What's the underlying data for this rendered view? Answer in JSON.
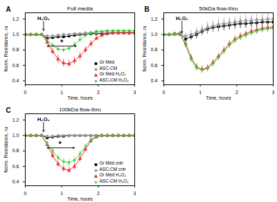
{
  "chart_data": [
    {
      "type": "line",
      "panel": "A",
      "title": "Full media",
      "x_label": "Time, hours",
      "y_label": "Norm. Resistance, ru",
      "xlim": [
        0,
        3
      ],
      "ylim": [
        0.35,
        1.28
      ],
      "xticks": [
        0,
        1,
        2,
        3
      ],
      "yticks": [
        0.4,
        0.6,
        0.8,
        {
          "value": 1,
          "label": "1.0"
        },
        1.2
      ],
      "legend": "lower right",
      "x": [
        0,
        0.15,
        0.3,
        0.45,
        0.6,
        0.75,
        0.9,
        1.05,
        1.2,
        1.35,
        1.5,
        1.65,
        1.8,
        1.95,
        2.1,
        2.25,
        2.4,
        2.55,
        2.7,
        2.85,
        3.0
      ],
      "series": [
        {
          "name": "Gr Med",
          "color": "#000000",
          "marker": "square",
          "values": [
            1,
            1,
            1,
            1,
            0.95,
            0.96,
            0.97,
            0.97,
            0.98,
            0.99,
            1,
            1,
            1.01,
            1.01,
            1.01,
            1.01,
            1.02,
            1.02,
            1.02,
            1.02,
            1.02
          ],
          "errors": [
            0.01,
            0.01,
            0.01,
            0.01,
            0.02,
            0.02,
            0.02,
            0.02,
            0.02,
            0.02,
            0.02,
            0.02,
            0.02,
            0.02,
            0.02,
            0.02,
            0.02,
            0.02,
            0.02,
            0.02,
            0.02
          ]
        },
        {
          "name": "ASC-CM",
          "color": "#9a9a9a",
          "marker": "circle",
          "values": [
            1,
            1,
            1,
            1,
            0.98,
            0.98,
            0.99,
            1,
            1,
            1.01,
            1.01,
            1.02,
            1.02,
            1.02,
            1.03,
            1.03,
            1.03,
            1.03,
            1.03,
            1.03,
            1.03
          ],
          "errors": [
            0.01,
            0.01,
            0.01,
            0.01,
            0.02,
            0.02,
            0.02,
            0.02,
            0.02,
            0.02,
            0.02,
            0.02,
            0.02,
            0.02,
            0.02,
            0.02,
            0.02,
            0.02,
            0.02,
            0.02,
            0.02
          ]
        },
        {
          "name": "Gr Med H₂O₂",
          "color": "#e8312a",
          "marker": "triangle",
          "values": [
            1,
            1,
            1,
            1,
            0.9,
            0.78,
            0.68,
            0.63,
            0.62,
            0.66,
            0.72,
            0.8,
            0.88,
            0.95,
            0.99,
            1.01,
            1.02,
            1.02,
            1.02,
            1.02,
            1.02
          ],
          "errors": [
            0.01,
            0.01,
            0.01,
            0.01,
            0.03,
            0.04,
            0.05,
            0.05,
            0.05,
            0.05,
            0.05,
            0.04,
            0.04,
            0.03,
            0.03,
            0.02,
            0.02,
            0.02,
            0.02,
            0.02,
            0.02
          ]
        },
        {
          "name": "ASC-CM H₂O₂",
          "color": "#3cc83c",
          "marker": "triangle-down",
          "values": [
            1,
            1,
            1,
            1,
            0.93,
            0.86,
            0.81,
            0.8,
            0.82,
            0.87,
            0.93,
            0.99,
            1.02,
            1.04,
            1.04,
            1.05,
            1.05,
            1.05,
            1.05,
            1.05,
            1.05
          ],
          "errors": [
            0.01,
            0.01,
            0.01,
            0.01,
            0.02,
            0.03,
            0.03,
            0.03,
            0.03,
            0.03,
            0.03,
            0.03,
            0.03,
            0.02,
            0.02,
            0.02,
            0.02,
            0.02,
            0.02,
            0.02,
            0.02
          ]
        }
      ],
      "annotations": [
        {
          "text": "H₂O₂",
          "x": 0.5,
          "y": 1.21,
          "arrows": [
            [
              [
                0.5,
                1.17
              ],
              [
                0.5,
                1.05
              ]
            ]
          ]
        },
        {
          "text": "*",
          "x": 1.0,
          "y": 0.9,
          "arrows": [
            [
              [
                1.0,
                0.85
              ],
              [
                0.6,
                0.85
              ]
            ],
            [
              [
                1.0,
                0.85
              ],
              [
                1.4,
                0.85
              ]
            ]
          ]
        }
      ]
    },
    {
      "type": "line",
      "panel": "B",
      "title": "50kDa flow-thru",
      "x_label": "Time, hours",
      "y_label": "Norm. Resistance, ru",
      "xlim": [
        0,
        3
      ],
      "ylim": [
        0.35,
        1.28
      ],
      "xticks": [
        0,
        1,
        2,
        3
      ],
      "yticks": [
        0.4,
        0.6,
        0.8,
        {
          "value": 1,
          "label": "1.0"
        },
        1.2
      ],
      "x": [
        0,
        0.15,
        0.3,
        0.45,
        0.6,
        0.75,
        0.9,
        1.05,
        1.2,
        1.35,
        1.5,
        1.65,
        1.8,
        1.95,
        2.1,
        2.25,
        2.4,
        2.55,
        2.7,
        2.85,
        3.0
      ],
      "series": [
        {
          "color": "#000000",
          "marker": "square",
          "values": [
            1,
            1,
            1.01,
            1.01,
            0.94,
            0.97,
            1.0,
            1.04,
            1.07,
            1.09,
            1.1,
            1.11,
            1.12,
            1.13,
            1.14,
            1.14,
            1.15,
            1.15,
            1.16,
            1.16,
            1.16
          ],
          "errors": [
            0.01,
            0.02,
            0.02,
            0.02,
            0.03,
            0.04,
            0.05,
            0.05,
            0.06,
            0.06,
            0.06,
            0.06,
            0.06,
            0.06,
            0.06,
            0.06,
            0.06,
            0.06,
            0.06,
            0.06,
            0.06
          ]
        },
        {
          "color": "#9a9a9a",
          "marker": "circle",
          "values": [
            1,
            1,
            1.01,
            1.02,
            0.98,
            1.0,
            1.03,
            1.06,
            1.09,
            1.11,
            1.13,
            1.14,
            1.15,
            1.16,
            1.17,
            1.18,
            1.18,
            1.19,
            1.19,
            1.2,
            1.2
          ],
          "errors": [
            0.01,
            0.02,
            0.02,
            0.03,
            0.04,
            0.05,
            0.06,
            0.06,
            0.07,
            0.07,
            0.07,
            0.07,
            0.07,
            0.07,
            0.07,
            0.07,
            0.07,
            0.07,
            0.07,
            0.07,
            0.07
          ]
        },
        {
          "color": "#e8312a",
          "marker": "triangle",
          "values": [
            1,
            1,
            1,
            1,
            0.88,
            0.7,
            0.58,
            0.55,
            0.57,
            0.64,
            0.72,
            0.8,
            0.88,
            0.94,
            0.98,
            1.01,
            1.04,
            1.06,
            1.08,
            1.09,
            1.1
          ],
          "errors": [
            0.01,
            0.01,
            0.01,
            0.01,
            0.03,
            0.04,
            0.04,
            0.04,
            0.04,
            0.04,
            0.04,
            0.04,
            0.04,
            0.04,
            0.04,
            0.04,
            0.04,
            0.04,
            0.04,
            0.04,
            0.04
          ]
        },
        {
          "color": "#3cc83c",
          "marker": "triangle-down",
          "values": [
            1,
            1,
            1,
            1,
            0.86,
            0.68,
            0.57,
            0.54,
            0.56,
            0.62,
            0.7,
            0.78,
            0.86,
            0.92,
            0.96,
            0.99,
            1.02,
            1.04,
            1.06,
            1.07,
            1.08
          ],
          "errors": [
            0.01,
            0.01,
            0.01,
            0.01,
            0.03,
            0.04,
            0.04,
            0.04,
            0.04,
            0.04,
            0.04,
            0.04,
            0.04,
            0.04,
            0.04,
            0.04,
            0.04,
            0.04,
            0.04,
            0.04,
            0.04
          ]
        }
      ],
      "annotations": [
        {
          "text": "H₂O₂",
          "x": 0.5,
          "y": 1.21,
          "arrows": [
            [
              [
                0.5,
                1.17
              ],
              [
                0.5,
                1.02
              ]
            ]
          ]
        }
      ]
    },
    {
      "type": "line",
      "panel": "C",
      "title": "100kDa flow-thru",
      "x_label": "Time, hours",
      "y_label": "Norm. Resistance, ru",
      "xlim": [
        0,
        3
      ],
      "ylim": [
        0.35,
        1.28
      ],
      "xticks": [
        0,
        1,
        2,
        3
      ],
      "yticks": [
        0.4,
        0.6,
        0.8,
        {
          "value": 1,
          "label": "1.0"
        },
        1.2
      ],
      "legend": "lower right",
      "x": [
        0,
        0.15,
        0.3,
        0.45,
        0.6,
        0.75,
        0.9,
        1.05,
        1.2,
        1.35,
        1.5,
        1.65,
        1.8,
        1.95,
        2.1,
        2.25,
        2.4,
        2.55,
        2.7,
        2.85,
        3.0
      ],
      "series": [
        {
          "name": "Gr Med cntr",
          "color": "#000000",
          "marker": "square",
          "values": [
            1,
            1,
            1,
            1,
            0.97,
            0.98,
            0.99,
            0.99,
            1,
            1,
            1,
            1,
            1,
            1,
            1,
            1,
            1,
            1,
            1,
            1,
            1
          ],
          "errors": [
            0.01,
            0.01,
            0.01,
            0.01,
            0.01,
            0.01,
            0.01,
            0.01,
            0.01,
            0.01,
            0.01,
            0.01,
            0.01,
            0.01,
            0.01,
            0.01,
            0.01,
            0.01,
            0.01,
            0.01,
            0.01
          ]
        },
        {
          "name": "ASC-CM cntr",
          "color": "#9a9a9a",
          "marker": "circle",
          "values": [
            1,
            1,
            1,
            1,
            0.99,
            0.99,
            1,
            1,
            1,
            1,
            1,
            1,
            1,
            1,
            1,
            1,
            1,
            1,
            1,
            1,
            1
          ],
          "errors": [
            0.01,
            0.01,
            0.01,
            0.01,
            0.01,
            0.01,
            0.01,
            0.01,
            0.01,
            0.01,
            0.01,
            0.01,
            0.01,
            0.01,
            0.01,
            0.01,
            0.01,
            0.01,
            0.01,
            0.01,
            0.01
          ]
        },
        {
          "name": "Gr Med H₂O₂",
          "color": "#e8312a",
          "marker": "triangle",
          "values": [
            1,
            1,
            1,
            1,
            0.88,
            0.74,
            0.63,
            0.57,
            0.55,
            0.6,
            0.7,
            0.82,
            0.93,
            0.98,
            1,
            1,
            1,
            1,
            1,
            1,
            1
          ],
          "errors": [
            0.01,
            0.01,
            0.01,
            0.01,
            0.03,
            0.04,
            0.04,
            0.04,
            0.04,
            0.04,
            0.04,
            0.03,
            0.03,
            0.02,
            0.02,
            0.01,
            0.01,
            0.01,
            0.01,
            0.01,
            0.01
          ]
        },
        {
          "name": "ASC-CM H₂O₂",
          "color": "#3cc83c",
          "marker": "triangle-down",
          "values": [
            1,
            1,
            1,
            1,
            0.9,
            0.8,
            0.71,
            0.66,
            0.65,
            0.68,
            0.76,
            0.86,
            0.95,
            0.99,
            1,
            1,
            1,
            1,
            1,
            1,
            1
          ],
          "errors": [
            0.01,
            0.01,
            0.01,
            0.01,
            0.03,
            0.04,
            0.04,
            0.04,
            0.04,
            0.04,
            0.04,
            0.03,
            0.03,
            0.02,
            0.02,
            0.01,
            0.01,
            0.01,
            0.01,
            0.01,
            0.01
          ]
        }
      ],
      "annotations": [
        {
          "text": "H₂O₂",
          "x": 0.5,
          "y": 1.21,
          "arrows": [
            [
              [
                0.5,
                1.17
              ],
              [
                0.5,
                1.05
              ]
            ]
          ]
        },
        {
          "text": "*",
          "x": 0.95,
          "y": 0.89,
          "arrows": [
            [
              [
                0.95,
                0.84
              ],
              [
                0.6,
                0.84
              ]
            ],
            [
              [
                0.95,
                0.84
              ],
              [
                1.35,
                0.84
              ]
            ]
          ]
        }
      ]
    }
  ]
}
